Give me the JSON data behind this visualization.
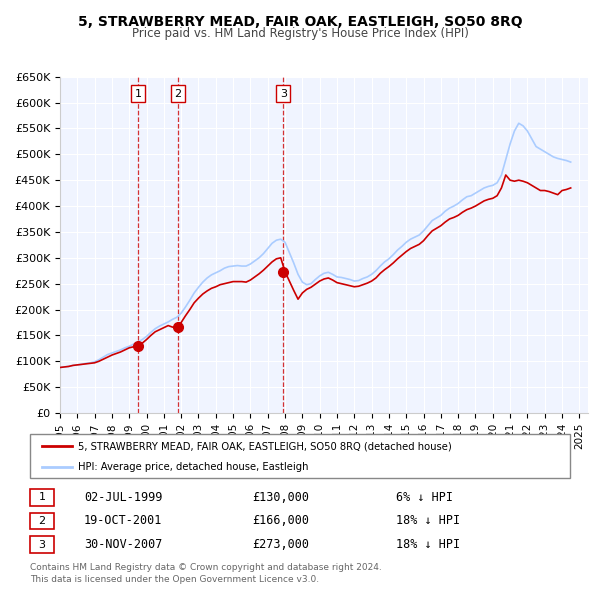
{
  "title": "5, STRAWBERRY MEAD, FAIR OAK, EASTLEIGH, SO50 8RQ",
  "subtitle": "Price paid vs. HM Land Registry's House Price Index (HPI)",
  "ylim": [
    0,
    650000
  ],
  "yticks": [
    0,
    50000,
    100000,
    150000,
    200000,
    250000,
    300000,
    350000,
    400000,
    450000,
    500000,
    550000,
    600000,
    650000
  ],
  "ytick_labels": [
    "£0",
    "£50K",
    "£100K",
    "£150K",
    "£200K",
    "£250K",
    "£300K",
    "£350K",
    "£400K",
    "£450K",
    "£500K",
    "£550K",
    "£600K",
    "£650K"
  ],
  "xlim_start": 1995.0,
  "xlim_end": 2025.5,
  "xticks": [
    1995,
    1996,
    1997,
    1998,
    1999,
    2000,
    2001,
    2002,
    2003,
    2004,
    2005,
    2006,
    2007,
    2008,
    2009,
    2010,
    2011,
    2012,
    2013,
    2014,
    2015,
    2016,
    2017,
    2018,
    2019,
    2020,
    2021,
    2022,
    2023,
    2024,
    2025
  ],
  "sale_color": "#cc0000",
  "hpi_color": "#aaccff",
  "vline_color": "#cc0000",
  "background_color": "#f0f4ff",
  "grid_color": "#ffffff",
  "legend_border_color": "#888888",
  "sale_label": "5, STRAWBERRY MEAD, FAIR OAK, EASTLEIGH, SO50 8RQ (detached house)",
  "hpi_label": "HPI: Average price, detached house, Eastleigh",
  "transactions": [
    {
      "id": 1,
      "date": "02-JUL-1999",
      "year": 1999.5,
      "price": 130000,
      "pct": "6%",
      "dir": "↓"
    },
    {
      "id": 2,
      "date": "19-OCT-2001",
      "year": 2001.8,
      "price": 166000,
      "pct": "18%",
      "dir": "↓"
    },
    {
      "id": 3,
      "date": "30-NOV-2007",
      "year": 2007.9,
      "price": 273000,
      "pct": "18%",
      "dir": "↓"
    }
  ],
  "footer1": "Contains HM Land Registry data © Crown copyright and database right 2024.",
  "footer2": "This data is licensed under the Open Government Licence v3.0.",
  "hpi_data_x": [
    1995.0,
    1995.25,
    1995.5,
    1995.75,
    1996.0,
    1996.25,
    1996.5,
    1996.75,
    1997.0,
    1997.25,
    1997.5,
    1997.75,
    1998.0,
    1998.25,
    1998.5,
    1998.75,
    1999.0,
    1999.25,
    1999.5,
    1999.75,
    2000.0,
    2000.25,
    2000.5,
    2000.75,
    2001.0,
    2001.25,
    2001.5,
    2001.75,
    2002.0,
    2002.25,
    2002.5,
    2002.75,
    2003.0,
    2003.25,
    2003.5,
    2003.75,
    2004.0,
    2004.25,
    2004.5,
    2004.75,
    2005.0,
    2005.25,
    2005.5,
    2005.75,
    2006.0,
    2006.25,
    2006.5,
    2006.75,
    2007.0,
    2007.25,
    2007.5,
    2007.75,
    2008.0,
    2008.25,
    2008.5,
    2008.75,
    2009.0,
    2009.25,
    2009.5,
    2009.75,
    2010.0,
    2010.25,
    2010.5,
    2010.75,
    2011.0,
    2011.25,
    2011.5,
    2011.75,
    2012.0,
    2012.25,
    2012.5,
    2012.75,
    2013.0,
    2013.25,
    2013.5,
    2013.75,
    2014.0,
    2014.25,
    2014.5,
    2014.75,
    2015.0,
    2015.25,
    2015.5,
    2015.75,
    2016.0,
    2016.25,
    2016.5,
    2016.75,
    2017.0,
    2017.25,
    2017.5,
    2017.75,
    2018.0,
    2018.25,
    2018.5,
    2018.75,
    2019.0,
    2019.25,
    2019.5,
    2019.75,
    2020.0,
    2020.25,
    2020.5,
    2020.75,
    2021.0,
    2021.25,
    2021.5,
    2021.75,
    2022.0,
    2022.25,
    2022.5,
    2022.75,
    2023.0,
    2023.25,
    2023.5,
    2023.75,
    2024.0,
    2024.25,
    2024.5
  ],
  "hpi_data_y": [
    88000,
    89000,
    90000,
    92000,
    93000,
    94000,
    96000,
    97000,
    99000,
    103000,
    108000,
    113000,
    116000,
    119000,
    122000,
    126000,
    129000,
    133000,
    137000,
    142000,
    148000,
    156000,
    163000,
    168000,
    172000,
    176000,
    181000,
    185000,
    193000,
    205000,
    218000,
    232000,
    243000,
    253000,
    261000,
    267000,
    271000,
    275000,
    280000,
    283000,
    284000,
    285000,
    284000,
    284000,
    288000,
    294000,
    300000,
    308000,
    318000,
    328000,
    334000,
    336000,
    330000,
    310000,
    290000,
    268000,
    253000,
    248000,
    250000,
    258000,
    265000,
    270000,
    272000,
    268000,
    263000,
    262000,
    260000,
    258000,
    255000,
    256000,
    260000,
    263000,
    268000,
    275000,
    284000,
    292000,
    298000,
    306000,
    315000,
    322000,
    330000,
    336000,
    340000,
    344000,
    352000,
    362000,
    372000,
    377000,
    382000,
    390000,
    396000,
    400000,
    405000,
    412000,
    418000,
    420000,
    425000,
    430000,
    435000,
    438000,
    440000,
    445000,
    460000,
    490000,
    520000,
    545000,
    560000,
    555000,
    545000,
    530000,
    515000,
    510000,
    505000,
    500000,
    495000,
    492000,
    490000,
    488000,
    485000
  ],
  "sale_data_x": [
    1995.0,
    1995.25,
    1995.5,
    1995.75,
    1996.0,
    1996.25,
    1996.5,
    1996.75,
    1997.0,
    1997.25,
    1997.5,
    1997.75,
    1998.0,
    1998.25,
    1998.5,
    1998.75,
    1999.0,
    1999.25,
    1999.5,
    1999.75,
    2000.0,
    2000.25,
    2000.5,
    2000.75,
    2001.0,
    2001.25,
    2001.5,
    2001.75,
    2002.0,
    2002.25,
    2002.5,
    2002.75,
    2003.0,
    2003.25,
    2003.5,
    2003.75,
    2004.0,
    2004.25,
    2004.5,
    2004.75,
    2005.0,
    2005.25,
    2005.5,
    2005.75,
    2006.0,
    2006.25,
    2006.5,
    2006.75,
    2007.0,
    2007.25,
    2007.5,
    2007.75,
    2008.0,
    2008.25,
    2008.5,
    2008.75,
    2009.0,
    2009.25,
    2009.5,
    2009.75,
    2010.0,
    2010.25,
    2010.5,
    2010.75,
    2011.0,
    2011.25,
    2011.5,
    2011.75,
    2012.0,
    2012.25,
    2012.5,
    2012.75,
    2013.0,
    2013.25,
    2013.5,
    2013.75,
    2014.0,
    2014.25,
    2014.5,
    2014.75,
    2015.0,
    2015.25,
    2015.5,
    2015.75,
    2016.0,
    2016.25,
    2016.5,
    2016.75,
    2017.0,
    2017.25,
    2017.5,
    2017.75,
    2018.0,
    2018.25,
    2018.5,
    2018.75,
    2019.0,
    2019.25,
    2019.5,
    2019.75,
    2020.0,
    2020.25,
    2020.5,
    2020.75,
    2021.0,
    2021.25,
    2021.5,
    2021.75,
    2022.0,
    2022.25,
    2022.5,
    2022.75,
    2023.0,
    2023.25,
    2023.5,
    2023.75,
    2024.0,
    2024.25,
    2024.5
  ],
  "sale_data_y": [
    88000,
    89000,
    90000,
    92000,
    93000,
    94000,
    95000,
    96000,
    97000,
    100000,
    104000,
    108000,
    112000,
    115000,
    118000,
    122000,
    126000,
    128000,
    130000,
    135000,
    142000,
    150000,
    157000,
    161000,
    165000,
    169000,
    166000,
    166000,
    175000,
    188000,
    200000,
    213000,
    222000,
    230000,
    236000,
    241000,
    244000,
    248000,
    250000,
    252000,
    254000,
    254000,
    254000,
    253000,
    257000,
    263000,
    269000,
    276000,
    284000,
    292000,
    298000,
    300000,
    273000,
    255000,
    237000,
    220000,
    232000,
    239000,
    243000,
    249000,
    255000,
    259000,
    261000,
    257000,
    252000,
    250000,
    248000,
    246000,
    244000,
    245000,
    248000,
    251000,
    255000,
    261000,
    270000,
    277000,
    283000,
    290000,
    298000,
    305000,
    312000,
    318000,
    322000,
    326000,
    333000,
    343000,
    352000,
    357000,
    362000,
    369000,
    375000,
    378000,
    382000,
    388000,
    393000,
    396000,
    400000,
    405000,
    410000,
    413000,
    415000,
    420000,
    435000,
    460000,
    450000,
    448000,
    450000,
    448000,
    445000,
    440000,
    435000,
    430000,
    430000,
    428000,
    425000,
    422000,
    430000,
    432000,
    435000
  ]
}
